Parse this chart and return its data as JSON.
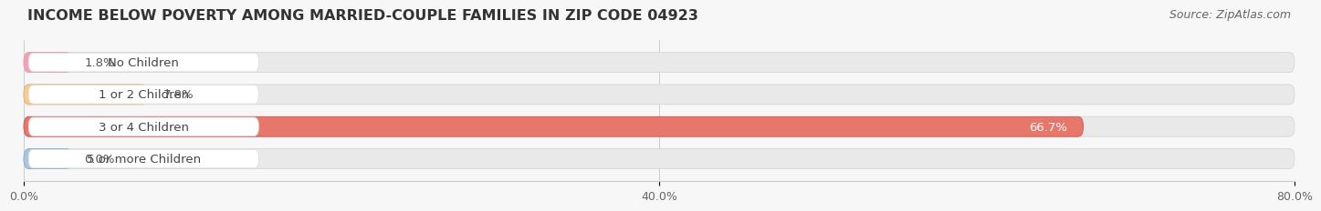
{
  "title": "INCOME BELOW POVERTY AMONG MARRIED-COUPLE FAMILIES IN ZIP CODE 04923",
  "source": "Source: ZipAtlas.com",
  "categories": [
    "No Children",
    "1 or 2 Children",
    "3 or 4 Children",
    "5 or more Children"
  ],
  "values": [
    1.8,
    7.8,
    66.7,
    0.0
  ],
  "value_labels": [
    "1.8%",
    "7.8%",
    "66.7%",
    "0.0%"
  ],
  "bar_colors": [
    "#f5a0b5",
    "#f8cb90",
    "#e8776b",
    "#aac5e2"
  ],
  "bar_edge_colors": [
    "#dda0b0",
    "#e0b070",
    "#cc5555",
    "#88aad0"
  ],
  "label_text_colors": [
    "#555555",
    "#555555",
    "#ffffff",
    "#555555"
  ],
  "xlim_max": 80.0,
  "xticks": [
    0.0,
    40.0,
    80.0
  ],
  "xtick_labels": [
    "0.0%",
    "40.0%",
    "80.0%"
  ],
  "background_color": "#f7f7f7",
  "bar_bg_color": "#e9e9e9",
  "bar_bg_edge_color": "#d5d5d5",
  "white_label_bg": "#ffffff",
  "title_fontsize": 11.5,
  "source_fontsize": 9,
  "label_fontsize": 9.5,
  "value_fontsize": 9.5,
  "tick_fontsize": 9
}
